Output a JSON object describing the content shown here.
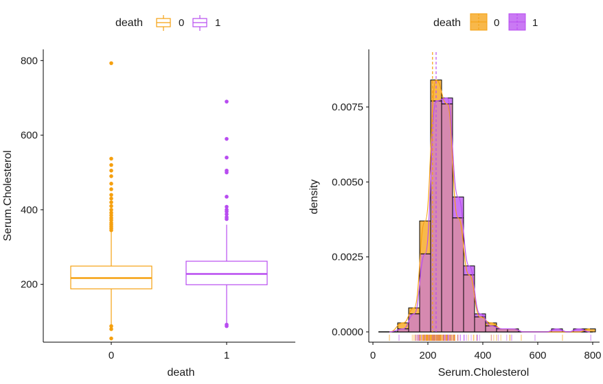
{
  "colors": {
    "death_0": "#F5A00F",
    "death_1": "#B84CF0",
    "overlap_fill": "#D689B0",
    "axis": "#000000"
  },
  "chart_data": [
    {
      "type": "boxplot",
      "legend": {
        "title": "death",
        "labels": [
          "0",
          "1"
        ],
        "position": "top"
      },
      "xlabel": "death",
      "ylabel": "Serum.Cholesterol",
      "categories": [
        "0",
        "1"
      ],
      "ylim": [
        45,
        830
      ],
      "yticks": [
        200,
        400,
        600,
        800
      ],
      "boxes": [
        {
          "group": "0",
          "whisker_low": 90,
          "q1": 188,
          "median": 217,
          "q3": 249,
          "whisker_high": 340,
          "outliers": [
            55,
            80,
            88,
            345,
            350,
            355,
            360,
            365,
            372,
            378,
            385,
            392,
            400,
            410,
            420,
            430,
            440,
            455,
            470,
            490,
            505,
            520,
            537,
            793
          ]
        },
        {
          "group": "1",
          "whisker_low": 96,
          "q1": 199,
          "median": 228,
          "q3": 262,
          "whisker_high": 360,
          "outliers": [
            88,
            92,
            375,
            380,
            388,
            395,
            400,
            408,
            435,
            500,
            505,
            540,
            590,
            690
          ]
        }
      ],
      "grid": false
    },
    {
      "type": "histogram",
      "legend": {
        "title": "death",
        "labels": [
          "0",
          "1"
        ],
        "position": "top"
      },
      "xlabel": "Serum.Cholesterol",
      "ylabel": "density",
      "xlim": [
        0,
        810
      ],
      "ylim": [
        -0.0003,
        0.0088
      ],
      "xticks": [
        0,
        200,
        400,
        600,
        800
      ],
      "yticks": [
        0.0,
        0.0025,
        0.005,
        0.0075
      ],
      "ytick_labels": [
        "0.0000",
        "0.0025",
        "0.0050",
        "0.0075"
      ],
      "bin_edges": [
        90,
        130,
        170,
        210,
        250,
        290,
        330,
        370,
        410,
        450,
        490,
        530,
        570,
        610,
        650,
        690,
        730,
        770,
        810
      ],
      "series": [
        {
          "name": "0",
          "densities": [
            0.0003,
            0.0008,
            0.0037,
            0.0084,
            0.0076,
            0.0038,
            0.0019,
            0.0005,
            0.0003,
            0.0001,
            0.0001,
            0.0,
            0.0,
            0.0,
            0.0,
            0.0,
            0.0,
            0.0001
          ],
          "mean": 217
        },
        {
          "name": "1",
          "densities": [
            0.0001,
            0.0006,
            0.0026,
            0.0077,
            0.0078,
            0.0045,
            0.0022,
            0.0006,
            0.0002,
            0.0001,
            0.0001,
            0.0,
            0.0,
            0.0,
            0.0001,
            0.0,
            0.0001,
            0.0
          ],
          "mean": 230
        }
      ],
      "grid": false
    }
  ]
}
